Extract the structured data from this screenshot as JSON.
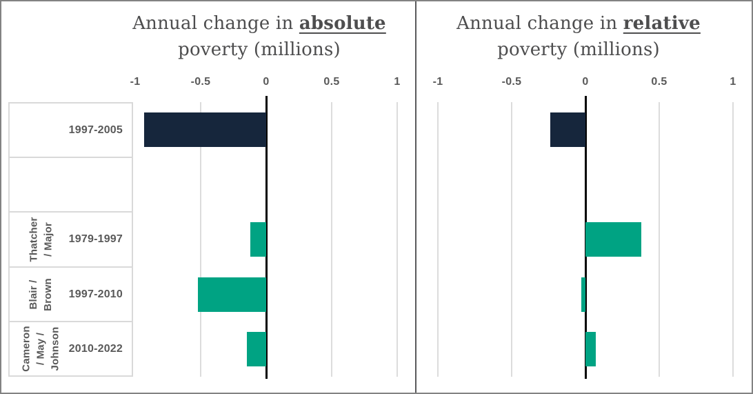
{
  "styles": {
    "background": "#ffffff",
    "frame_border_color": "#828282",
    "panel_divider_color": "#59595b",
    "gridline_color": "#dcdcdc",
    "zero_line_color": "#000000",
    "label_box_border_color": "#d9d9d9",
    "axis_text_color": "#595959",
    "title_text_color": "#4d4d4e",
    "navy": "#16263c",
    "green": "#00a383"
  },
  "row_labels": [
    {
      "group": "",
      "period": "1997-2005"
    },
    {
      "group": "",
      "period": ""
    },
    {
      "group": "Thatcher\n/ Major",
      "period": "1979-1997"
    },
    {
      "group": "Blair /\nBrown",
      "period": "1997-2010"
    },
    {
      "group": "Cameron\n/ May /\nJohnson",
      "period": "2010-2022"
    }
  ],
  "chart_data": [
    {
      "id": "absolute",
      "type": "bar",
      "orientation": "horizontal",
      "title": "Annual change in absolute poverty (millions)",
      "title_prefix": "Annual change in ",
      "title_emphasis": "absolute",
      "title_line2": "poverty (millions)",
      "categories": [
        "1997-2005",
        "",
        "1979-1997",
        "1997-2010",
        "2010-2022"
      ],
      "group_labels": [
        "",
        "",
        "Thatcher / Major",
        "Blair / Brown",
        "Cameron / May / Johnson"
      ],
      "values": [
        -0.93,
        null,
        -0.12,
        -0.52,
        -0.15
      ],
      "bar_colors": [
        "#16263c",
        null,
        "#00a383",
        "#00a383",
        "#00a383"
      ],
      "xlim": [
        -1,
        1
      ],
      "xticks": [
        -1,
        -0.5,
        0,
        0.5,
        1
      ],
      "xtick_labels": [
        "-1",
        "-0.5",
        "0",
        "0.5",
        "1"
      ],
      "grid": true,
      "zero_line": true,
      "legend": "none"
    },
    {
      "id": "relative",
      "type": "bar",
      "orientation": "horizontal",
      "title": "Annual change in relative poverty (millions)",
      "title_prefix": "Annual change in ",
      "title_emphasis": "relative",
      "title_line2": "poverty (millions)",
      "categories": [
        "1997-2005",
        "",
        "1979-1997",
        "1997-2010",
        "2010-2022"
      ],
      "group_labels": [
        "",
        "",
        "Thatcher / Major",
        "Blair / Brown",
        "Cameron / May / Johnson"
      ],
      "values": [
        -0.24,
        null,
        0.38,
        -0.03,
        0.07
      ],
      "bar_colors": [
        "#16263c",
        null,
        "#00a383",
        "#00a383",
        "#00a383"
      ],
      "xlim": [
        -1,
        1
      ],
      "xticks": [
        -1,
        -0.5,
        0,
        0.5,
        1
      ],
      "xtick_labels": [
        "-1",
        "-0.5",
        "0",
        "0.5",
        "1"
      ],
      "grid": true,
      "zero_line": true,
      "legend": "none"
    }
  ]
}
